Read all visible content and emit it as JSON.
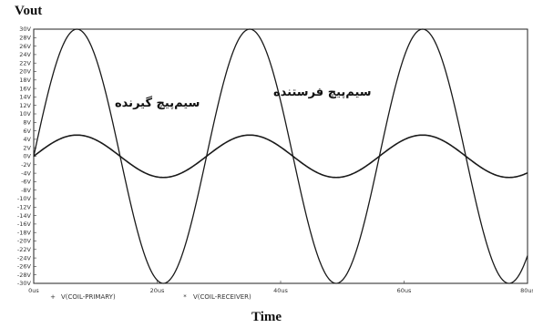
{
  "chart_data": {
    "type": "line",
    "ylabel": "Vout",
    "xlabel": "Time",
    "ylim": [
      -30,
      30
    ],
    "xlim": [
      0,
      80
    ],
    "y_ticks": [
      30,
      28,
      26,
      24,
      22,
      20,
      18,
      16,
      14,
      12,
      10,
      8,
      6,
      4,
      2,
      0,
      -2,
      -4,
      -6,
      -8,
      -10,
      -12,
      -14,
      -16,
      -18,
      -20,
      -22,
      -24,
      -26,
      -28,
      -30
    ],
    "y_tick_labels": [
      "30V",
      "28V",
      "26V",
      "24V",
      "22V",
      "20V",
      "18V",
      "16V",
      "14V",
      "12V",
      "10V",
      "8V",
      "6V",
      "4V",
      "2V",
      "0V",
      "-2V",
      "-4V",
      "-6V",
      "-8V",
      "-10V",
      "-12V",
      "-14V",
      "-16V",
      "-18V",
      "-20V",
      "-22V",
      "-24V",
      "-26V",
      "-28V",
      "-30V"
    ],
    "x_ticks": [
      0,
      20,
      40,
      60,
      80
    ],
    "x_tick_labels": [
      "0us",
      "20us",
      "40us",
      "60us",
      "80us"
    ],
    "series": [
      {
        "name": "V(COIL-PRIMARY)",
        "marker": "+",
        "amplitude": 30,
        "period": 28,
        "phase_deg": 0
      },
      {
        "name": "V(COIL-RECEIVER)",
        "marker": "*",
        "amplitude": 5,
        "period": 28,
        "phase_deg": 0
      }
    ],
    "annotations": [
      {
        "text": "سیم‌پیچ فرستنده"
      },
      {
        "text": "سیم‌پیچ گیرنده"
      }
    ]
  }
}
